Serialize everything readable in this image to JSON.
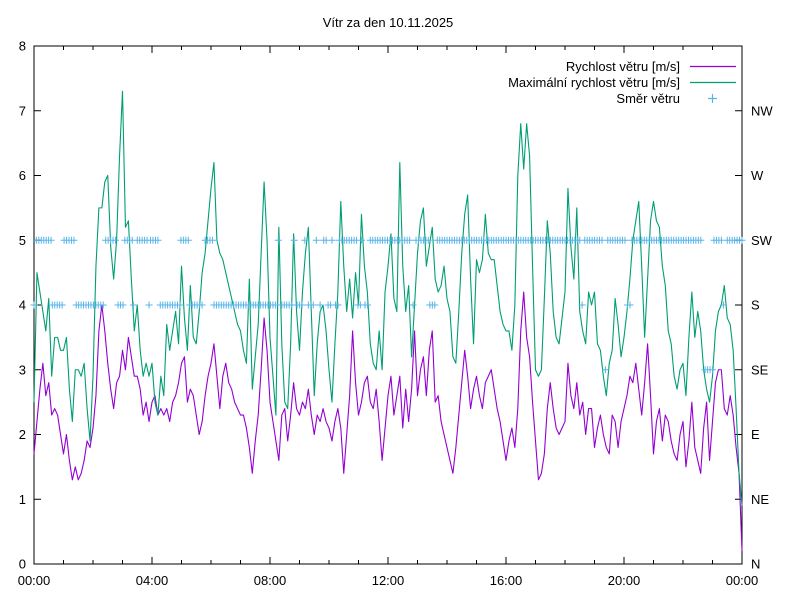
{
  "chart_data": {
    "type": "line",
    "title": "Vítr za den 10.11.2025",
    "grid": false,
    "legend_position": "top-right-inside",
    "background": "#ffffff",
    "axis_color": "#000000",
    "x_axis": {
      "unit": "hours",
      "range": [
        0,
        24
      ],
      "major_tick_hours": [
        0,
        4,
        8,
        12,
        16,
        20,
        24
      ],
      "major_tick_labels": [
        "00:00",
        "04:00",
        "08:00",
        "12:00",
        "16:00",
        "20:00",
        "00:00"
      ],
      "minor_tick_interval_hours": 1
    },
    "y_axis_left": {
      "range": [
        0,
        8
      ],
      "tick_interval": 1,
      "tick_labels": [
        "0",
        "1",
        "2",
        "3",
        "4",
        "5",
        "6",
        "7",
        "8"
      ]
    },
    "y_axis_right": {
      "description": "wind direction scale, value 0-7 maps to compass point",
      "labels": [
        "N",
        "NE",
        "E",
        "SE",
        "S",
        "SW",
        "W",
        "NW"
      ]
    },
    "series": [
      {
        "name": "Rychlost větru [m/s]",
        "type": "line",
        "color": "#9400d3",
        "x_start_hours": 0,
        "x_step_hours": 0.1,
        "values": [
          1.7,
          2.2,
          2.7,
          3.1,
          2.6,
          2.8,
          2.3,
          2.4,
          2.3,
          2.0,
          1.7,
          2.0,
          1.6,
          1.3,
          1.5,
          1.3,
          1.4,
          1.6,
          1.9,
          1.8,
          2.1,
          2.6,
          3.6,
          4.0,
          3.6,
          3.1,
          2.7,
          2.4,
          2.8,
          2.9,
          3.3,
          3.0,
          3.5,
          3.2,
          2.9,
          2.9,
          2.7,
          2.3,
          2.5,
          2.2,
          2.5,
          2.6,
          2.3,
          2.4,
          2.3,
          2.4,
          2.2,
          2.5,
          2.6,
          2.8,
          3.1,
          3.2,
          2.5,
          2.7,
          2.6,
          2.3,
          2.0,
          2.2,
          2.6,
          2.9,
          3.1,
          3.4,
          2.9,
          2.4,
          2.9,
          3.1,
          2.8,
          2.7,
          2.5,
          2.4,
          2.3,
          2.3,
          2.1,
          1.8,
          1.4,
          1.9,
          2.3,
          3.0,
          3.8,
          3.3,
          2.5,
          2.2,
          1.9,
          1.6,
          2.3,
          2.4,
          1.9,
          2.3,
          2.8,
          2.4,
          2.3,
          2.5,
          2.4,
          2.7,
          2.3,
          2.0,
          2.3,
          2.2,
          2.4,
          2.2,
          2.1,
          1.9,
          2.2,
          2.4,
          2.1,
          1.4,
          2.0,
          2.6,
          3.6,
          2.8,
          2.3,
          2.5,
          2.8,
          2.9,
          2.5,
          2.4,
          2.7,
          2.2,
          1.6,
          2.1,
          2.6,
          2.9,
          2.3,
          2.6,
          2.9,
          2.1,
          2.7,
          2.2,
          2.7,
          3.6,
          2.6,
          3.0,
          3.2,
          2.6,
          3.3,
          3.6,
          2.5,
          2.6,
          2.2,
          2.0,
          1.8,
          1.6,
          1.4,
          1.8,
          2.3,
          2.8,
          3.3,
          2.9,
          2.4,
          2.7,
          2.9,
          2.6,
          2.4,
          2.8,
          2.9,
          3.0,
          2.7,
          2.4,
          2.2,
          1.9,
          1.6,
          1.9,
          2.1,
          1.8,
          2.4,
          3.6,
          4.2,
          3.5,
          3.2,
          2.5,
          1.9,
          1.3,
          1.4,
          1.7,
          2.4,
          2.8,
          2.4,
          2.1,
          2.0,
          2.1,
          2.2,
          3.1,
          2.6,
          2.4,
          2.8,
          2.3,
          2.5,
          2.0,
          2.4,
          2.4,
          1.8,
          2.1,
          2.3,
          2.0,
          1.8,
          1.7,
          2.3,
          2.2,
          1.8,
          2.2,
          2.4,
          2.6,
          2.9,
          2.8,
          3.1,
          2.7,
          2.3,
          2.8,
          3.4,
          2.6,
          1.7,
          2.2,
          2.4,
          1.9,
          2.3,
          2.2,
          1.9,
          1.7,
          1.6,
          2.0,
          2.2,
          1.5,
          1.9,
          2.5,
          1.8,
          1.6,
          1.4,
          2.1,
          2.5,
          1.6,
          2.2,
          2.8,
          3.0,
          3.0,
          2.4,
          2.3,
          2.6,
          2.3,
          1.8,
          1.4,
          0.2
        ]
      },
      {
        "name": "Maximální rychlost větru [m/s]",
        "type": "line",
        "color": "#009e73",
        "x_start_hours": 0,
        "x_step_hours": 0.1,
        "values": [
          2.5,
          4.5,
          4.2,
          3.9,
          3.6,
          4.1,
          2.9,
          3.5,
          3.5,
          3.3,
          3.3,
          3.5,
          2.7,
          2.2,
          3.0,
          3.0,
          2.9,
          3.1,
          2.4,
          1.9,
          2.9,
          4.6,
          5.5,
          5.5,
          5.9,
          6.0,
          4.9,
          4.4,
          5.0,
          6.3,
          7.3,
          5.2,
          5.3,
          4.4,
          3.6,
          4.0,
          3.3,
          2.9,
          3.1,
          2.9,
          3.1,
          2.5,
          2.3,
          2.9,
          2.6,
          3.7,
          3.3,
          3.6,
          3.9,
          3.4,
          4.6,
          3.8,
          3.3,
          4.3,
          3.5,
          3.4,
          3.9,
          4.5,
          4.8,
          5.3,
          5.8,
          6.2,
          5.0,
          4.8,
          4.7,
          4.5,
          4.3,
          4.1,
          3.9,
          3.7,
          3.6,
          3.3,
          3.1,
          4.4,
          2.7,
          3.2,
          3.7,
          4.8,
          5.9,
          5.0,
          3.5,
          2.9,
          2.3,
          5.2,
          3.4,
          2.5,
          2.4,
          3.4,
          5.1,
          3.9,
          3.3,
          4.2,
          4.8,
          5.2,
          3.9,
          2.6,
          3.4,
          3.9,
          4.0,
          3.6,
          3.0,
          2.5,
          3.4,
          4.2,
          5.6,
          4.6,
          3.9,
          4.4,
          3.8,
          4.5,
          4.0,
          5.4,
          4.6,
          4.2,
          3.4,
          3.1,
          3.0,
          3.6,
          3.0,
          4.2,
          4.6,
          5.1,
          4.1,
          3.9,
          6.2,
          4.6,
          3.9,
          4.3,
          3.2,
          4.0,
          4.8,
          5.3,
          5.5,
          4.6,
          4.9,
          5.2,
          4.4,
          4.2,
          4.3,
          4.6,
          4.1,
          3.9,
          3.2,
          3.1,
          3.9,
          4.8,
          5.4,
          5.7,
          4.4,
          3.4,
          4.7,
          4.5,
          4.7,
          5.4,
          4.8,
          4.7,
          4.7,
          4.3,
          3.9,
          3.7,
          3.6,
          3.6,
          3.3,
          4.0,
          6.0,
          6.8,
          6.1,
          6.8,
          6.3,
          4.6,
          3.0,
          2.9,
          3.0,
          4.1,
          5.3,
          4.8,
          3.9,
          3.5,
          3.4,
          3.8,
          4.2,
          5.8,
          4.9,
          4.4,
          5.5,
          3.9,
          3.6,
          3.4,
          4.2,
          4.0,
          4.2,
          3.4,
          3.3,
          2.9,
          2.6,
          3.1,
          3.3,
          4.1,
          3.7,
          3.2,
          3.5,
          3.9,
          4.4,
          5.0,
          5.3,
          5.6,
          4.6,
          3.5,
          4.4,
          5.3,
          5.6,
          5.3,
          5.2,
          4.6,
          4.3,
          3.6,
          3.4,
          2.9,
          2.7,
          3.0,
          3.1,
          2.6,
          3.5,
          4.2,
          3.5,
          3.9,
          3.6,
          3.0,
          2.7,
          2.5,
          2.9,
          3.6,
          3.9,
          4.0,
          4.3,
          3.8,
          3.7,
          3.3,
          2.4,
          1.4,
          0.9
        ]
      },
      {
        "name": "Směr větru",
        "type": "points",
        "marker": "+",
        "color": "#56b4e9",
        "y_axis": "right",
        "marker_interval_hours": 0.0833,
        "direction_scale": [
          "N",
          "NE",
          "E",
          "SE",
          "S",
          "SW",
          "W",
          "NW"
        ],
        "segments_hours_dir": [
          [
            0.0,
            0.05,
            4
          ],
          [
            0.08,
            0.58,
            5
          ],
          [
            0.62,
            0.98,
            4
          ],
          [
            1.02,
            1.4,
            5
          ],
          [
            1.43,
            2.4,
            4
          ],
          [
            2.43,
            2.82,
            5
          ],
          [
            2.85,
            3.05,
            4
          ],
          [
            3.08,
            3.33,
            5
          ],
          [
            3.37,
            3.45,
            4
          ],
          [
            3.5,
            3.87,
            5
          ],
          [
            3.9,
            3.92,
            4
          ],
          [
            3.95,
            4.25,
            5
          ],
          [
            4.28,
            4.95,
            4
          ],
          [
            4.98,
            5.25,
            5
          ],
          [
            5.28,
            5.77,
            4
          ],
          [
            5.8,
            6.07,
            5
          ],
          [
            6.1,
            8.25,
            4
          ],
          [
            8.28,
            8.35,
            5
          ],
          [
            8.4,
            8.78,
            4
          ],
          [
            8.82,
            8.88,
            5
          ],
          [
            8.92,
            9.15,
            4
          ],
          [
            9.18,
            9.25,
            5
          ],
          [
            9.3,
            9.52,
            4
          ],
          [
            9.57,
            9.65,
            5
          ],
          [
            9.7,
            9.78,
            4
          ],
          [
            9.82,
            9.93,
            5
          ],
          [
            9.97,
            10.07,
            4
          ],
          [
            10.1,
            10.18,
            5
          ],
          [
            10.22,
            10.32,
            4
          ],
          [
            10.35,
            10.95,
            5
          ],
          [
            10.98,
            11.07,
            4
          ],
          [
            11.1,
            11.18,
            5
          ],
          [
            11.22,
            11.35,
            4
          ],
          [
            11.4,
            12.8,
            5
          ],
          [
            12.85,
            12.9,
            4
          ],
          [
            12.95,
            13.38,
            5
          ],
          [
            13.42,
            13.62,
            4
          ],
          [
            13.67,
            18.55,
            5
          ],
          [
            18.58,
            18.62,
            4
          ],
          [
            18.67,
            19.33,
            5
          ],
          [
            19.37,
            19.4,
            3
          ],
          [
            19.45,
            20.08,
            5
          ],
          [
            20.12,
            20.22,
            4
          ],
          [
            20.27,
            22.68,
            5
          ],
          [
            22.75,
            23.0,
            3
          ],
          [
            23.05,
            23.33,
            5
          ],
          [
            23.37,
            23.45,
            4
          ],
          [
            23.5,
            24.0,
            5
          ]
        ]
      }
    ]
  }
}
